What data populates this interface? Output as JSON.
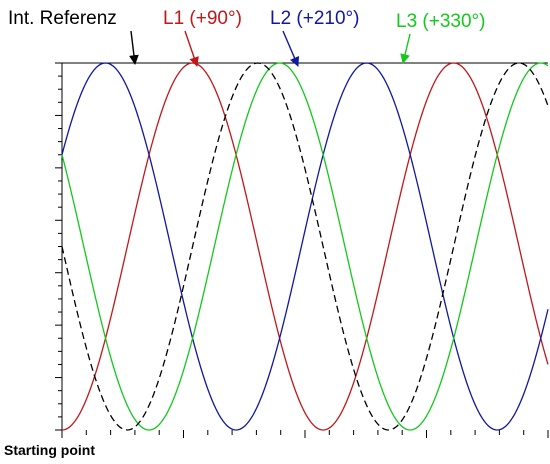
{
  "chart_data": {
    "type": "line",
    "title": "",
    "xlabel": "",
    "ylabel": "",
    "xlim": [
      0,
      670
    ],
    "ylim": [
      -1,
      1
    ],
    "grid": false,
    "x_unit": "degrees",
    "series": [
      {
        "name": "Int. Referenz",
        "phase_deg": 0,
        "amplitude": 1,
        "color": "#000000",
        "style": "dashed"
      },
      {
        "name": "L1 (+90°)",
        "phase_deg": 90,
        "amplitude": 1,
        "color": "#c0181a",
        "style": "solid"
      },
      {
        "name": "L2 (+210°)",
        "phase_deg": 210,
        "amplitude": 1,
        "color": "#1018a0",
        "style": "solid"
      },
      {
        "name": "L3 (+330°)",
        "phase_deg": 330,
        "amplitude": 1,
        "color": "#14c81c",
        "style": "solid"
      }
    ],
    "footer": "Starting point"
  },
  "labels": {
    "ref": "Int. Referenz",
    "l1": "L1 (+90°)",
    "l2": "L2 (+210°)",
    "l3": "L3 (+330°)"
  },
  "colors": {
    "ref": "#000000",
    "l1": "#c0181a",
    "l2": "#1018a0",
    "l3": "#14c81c"
  }
}
